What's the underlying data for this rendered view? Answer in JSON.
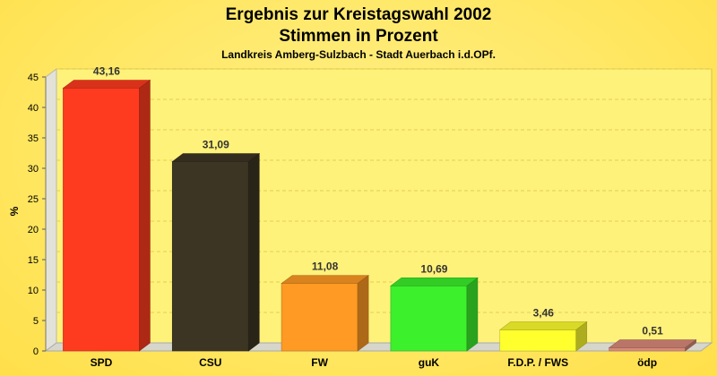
{
  "chart_data": {
    "type": "bar",
    "title": "Ergebnis zur Kreistagswahl 2002",
    "subtitle": "Stimmen in Prozent",
    "subsubtitle": "Landkreis Amberg-Sulzbach - Stadt Auerbach i.d.OPf.",
    "ylabel": "%",
    "xlabel": "",
    "ylim": [
      0,
      45
    ],
    "yticks": [
      0,
      5,
      10,
      15,
      20,
      25,
      30,
      35,
      40,
      45
    ],
    "categories": [
      "SPD",
      "CSU",
      "FW",
      "guK",
      "F.D.P. / FWS",
      "ödp"
    ],
    "values": [
      43.16,
      31.09,
      11.08,
      10.69,
      3.46,
      0.51
    ],
    "value_labels": [
      "43,16",
      "31,09",
      "11,08",
      "10,69",
      "3,46",
      "0,51"
    ],
    "colors": [
      "#ff3b1f",
      "#3d3524",
      "#ff9a24",
      "#3cf02c",
      "#ffff2e",
      "#d88a7a"
    ],
    "grid": true,
    "legend": "none"
  }
}
